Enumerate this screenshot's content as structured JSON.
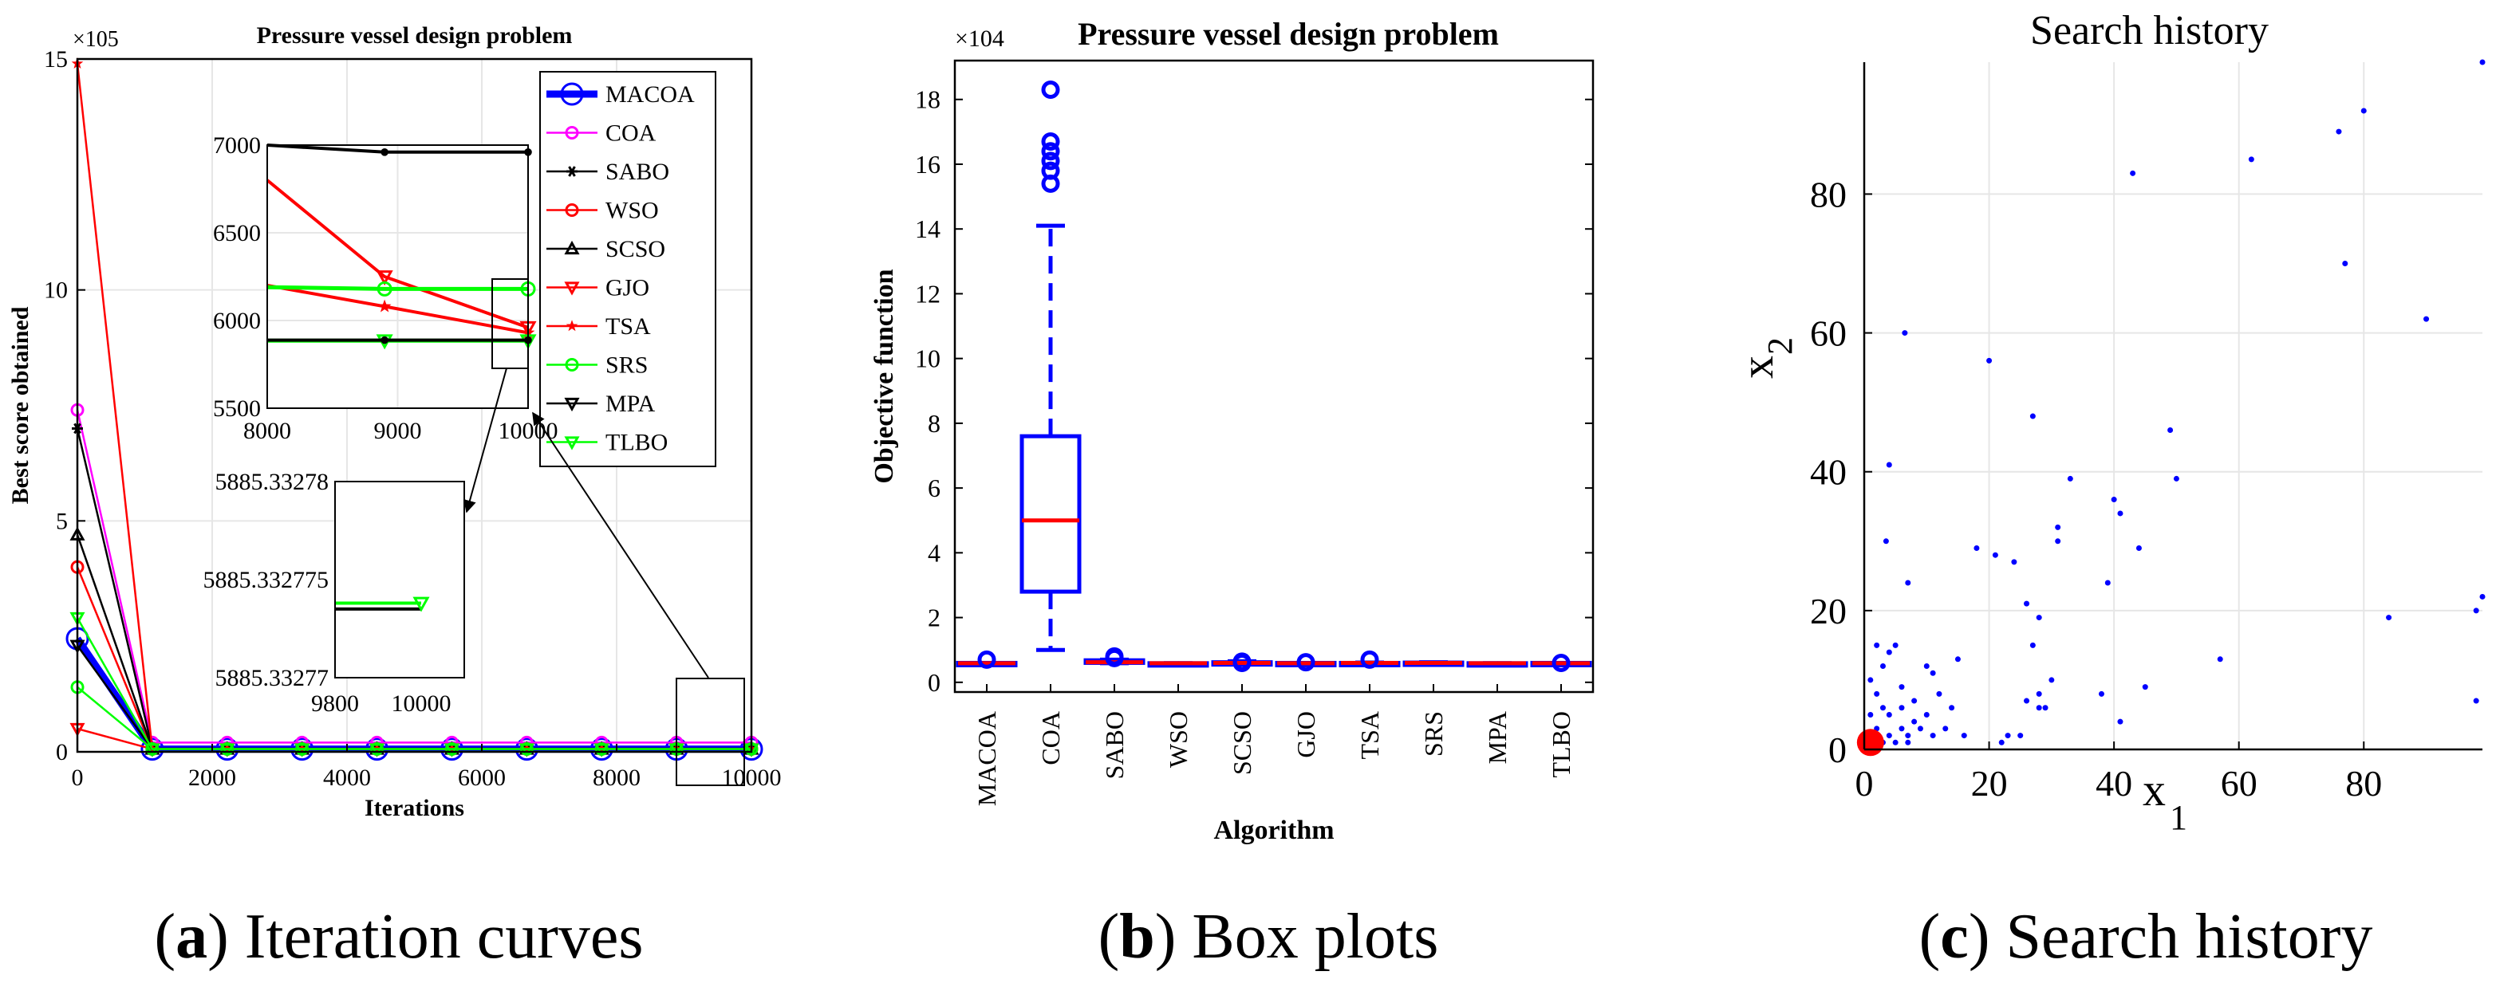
{
  "captions": [
    {
      "letter": "a",
      "text": "Iteration curves"
    },
    {
      "letter": "b",
      "text": "Box plots"
    },
    {
      "letter": "c",
      "text": "Search history"
    }
  ],
  "chart_data": [
    {
      "type": "line",
      "title": "Pressure vessel design problem",
      "xlabel": "Iterations",
      "ylabel": "Best score obtained",
      "exponent_label": "×10^5",
      "xlim": [
        0,
        10000
      ],
      "ylim": [
        0,
        15
      ],
      "xticks": [
        0,
        2000,
        4000,
        6000,
        8000,
        10000
      ],
      "yticks": [
        0,
        5,
        10,
        15
      ],
      "x": [
        0,
        1111,
        2222,
        3333,
        4444,
        5556,
        6667,
        7778,
        8889,
        10000
      ],
      "series": [
        {
          "name": "MACOA",
          "color": "#0000ff",
          "marker": "circle",
          "width": "thick",
          "values": [
            2.45,
            0.059,
            0.059,
            0.059,
            0.059,
            0.059,
            0.059,
            0.059,
            0.059,
            0.059
          ]
        },
        {
          "name": "COA",
          "color": "#ff00ff",
          "marker": "circle",
          "values": [
            7.4,
            0.2,
            0.2,
            0.2,
            0.2,
            0.2,
            0.2,
            0.2,
            0.2,
            0.2
          ]
        },
        {
          "name": "SABO",
          "color": "#000000",
          "marker": "asterisk",
          "values": [
            7.0,
            0.07,
            0.07,
            0.07,
            0.07,
            0.07,
            0.07,
            0.07,
            0.07,
            0.07
          ]
        },
        {
          "name": "WSO",
          "color": "#ff0000",
          "marker": "circle",
          "values": [
            4.0,
            0.06,
            0.06,
            0.06,
            0.06,
            0.06,
            0.06,
            0.06,
            0.06,
            0.06
          ]
        },
        {
          "name": "SCSO",
          "color": "#000000",
          "marker": "triangle-up",
          "values": [
            4.7,
            0.06,
            0.06,
            0.06,
            0.06,
            0.06,
            0.06,
            0.06,
            0.06,
            0.06
          ]
        },
        {
          "name": "GJO",
          "color": "#ff0000",
          "marker": "triangle-down",
          "values": [
            0.5,
            0.06,
            0.06,
            0.06,
            0.06,
            0.06,
            0.06,
            0.06,
            0.06,
            0.06
          ]
        },
        {
          "name": "TSA",
          "color": "#ff0000",
          "marker": "star",
          "values": [
            14.9,
            0.06,
            0.06,
            0.06,
            0.06,
            0.06,
            0.06,
            0.06,
            0.06,
            0.06
          ]
        },
        {
          "name": "SRS",
          "color": "#00ff00",
          "marker": "circle",
          "values": [
            1.4,
            0.062,
            0.062,
            0.062,
            0.062,
            0.062,
            0.062,
            0.062,
            0.062,
            0.062
          ]
        },
        {
          "name": "MPA",
          "color": "#000000",
          "marker": "triangle-down",
          "values": [
            2.3,
            0.059,
            0.059,
            0.059,
            0.059,
            0.059,
            0.059,
            0.059,
            0.059,
            0.059
          ]
        },
        {
          "name": "TLBO",
          "color": "#00ff00",
          "marker": "triangle-down",
          "values": [
            2.9,
            0.059,
            0.059,
            0.059,
            0.059,
            0.059,
            0.059,
            0.059,
            0.059,
            0.059
          ]
        }
      ],
      "legend_location": "top-right",
      "inset1": {
        "xlim": [
          8000,
          10000
        ],
        "ylim": [
          5500,
          7000
        ],
        "xticks": [
          8000,
          9000,
          10000
        ],
        "yticks": [
          5500,
          6000,
          6500,
          7000
        ],
        "lines": [
          {
            "color": "#000000",
            "marker": "dot",
            "points": [
              [
                8000,
                7000
              ],
              [
                8900,
                6960
              ],
              [
                10000,
                6960
              ]
            ]
          },
          {
            "color": "#ff0000",
            "marker": "triangle-down",
            "points": [
              [
                8000,
                6800
              ],
              [
                8900,
                6250
              ],
              [
                10000,
                5960
              ]
            ]
          },
          {
            "color": "#ff0000",
            "marker": "star",
            "points": [
              [
                8000,
                6200
              ],
              [
                8900,
                6080
              ],
              [
                10000,
                5930
              ]
            ]
          },
          {
            "color": "#00ff00",
            "marker": "circle",
            "points": [
              [
                8000,
                6190
              ],
              [
                8900,
                6180
              ],
              [
                10000,
                6180
              ]
            ]
          },
          {
            "color": "#00ff00",
            "marker": "triangle-down",
            "points": [
              [
                8000,
                5885
              ],
              [
                8900,
                5885
              ],
              [
                10000,
                5885
              ]
            ]
          },
          {
            "color": "#000000",
            "marker": "dot",
            "points": [
              [
                8000,
                5888
              ],
              [
                8900,
                5888
              ],
              [
                10000,
                5888
              ]
            ]
          }
        ]
      },
      "inset2": {
        "xlim": [
          9800,
          10100
        ],
        "ylim": [
          5885.33277,
          5885.33278
        ],
        "xticks": [
          9800,
          10000
        ],
        "yticks": [
          "5885.33277",
          "5885.332775",
          "5885.33278"
        ],
        "lines": [
          {
            "color": "#000000",
            "points": [
              [
                9800,
                5885.3327735
              ],
              [
                10000,
                5885.3327735
              ]
            ]
          },
          {
            "color": "#00ff00",
            "marker": "triangle-down",
            "points": [
              [
                9800,
                5885.3327738
              ],
              [
                10000,
                5885.3327738
              ]
            ]
          }
        ]
      }
    },
    {
      "type": "box",
      "title": "Pressure vessel design problem",
      "xlabel": "Algorithm",
      "ylabel": "Objective function",
      "exponent_label": "×10^4",
      "ylim": [
        -0.3,
        19.2
      ],
      "yticks": [
        0,
        2,
        4,
        6,
        8,
        10,
        12,
        14,
        16,
        18
      ],
      "categories": [
        "MACOA",
        "COA",
        "SABO",
        "WSO",
        "SCSO",
        "GJO",
        "TSA",
        "SRS",
        "MPA",
        "TLBO"
      ],
      "boxes": [
        {
          "q1": 0.59,
          "median": 0.59,
          "q3": 0.6,
          "low": 0.59,
          "high": 0.6,
          "outliers": [
            0.7
          ]
        },
        {
          "q1": 2.8,
          "median": 5.0,
          "q3": 7.6,
          "low": 1.0,
          "high": 14.1,
          "outliers": [
            15.4,
            15.8,
            16.1,
            16.4,
            16.7,
            18.3
          ]
        },
        {
          "q1": 0.6,
          "median": 0.62,
          "q3": 0.68,
          "low": 0.59,
          "high": 0.7,
          "outliers": [
            0.75,
            0.8
          ]
        },
        {
          "q1": 0.59,
          "median": 0.59,
          "q3": 0.59,
          "low": 0.59,
          "high": 0.59,
          "outliers": []
        },
        {
          "q1": 0.59,
          "median": 0.6,
          "q3": 0.62,
          "low": 0.59,
          "high": 0.65,
          "outliers": [
            0.6,
            0.62,
            0.64
          ]
        },
        {
          "q1": 0.59,
          "median": 0.59,
          "q3": 0.6,
          "low": 0.59,
          "high": 0.6,
          "outliers": [
            0.62
          ]
        },
        {
          "q1": 0.59,
          "median": 0.6,
          "q3": 0.6,
          "low": 0.59,
          "high": 0.61,
          "outliers": [
            0.7
          ]
        },
        {
          "q1": 0.59,
          "median": 0.6,
          "q3": 0.61,
          "low": 0.59,
          "high": 0.62,
          "outliers": []
        },
        {
          "q1": 0.59,
          "median": 0.59,
          "q3": 0.59,
          "low": 0.59,
          "high": 0.59,
          "outliers": []
        },
        {
          "q1": 0.59,
          "median": 0.59,
          "q3": 0.6,
          "low": 0.59,
          "high": 0.6,
          "outliers": [
            0.6
          ]
        }
      ]
    },
    {
      "type": "scatter",
      "title": "Search history",
      "xlabel": "x",
      "xlabel_sub": "1",
      "ylabel": "x",
      "ylabel_sub": "2",
      "xlim": [
        0,
        99
      ],
      "ylim": [
        0,
        99
      ],
      "xticks": [
        0,
        20,
        40,
        60,
        80
      ],
      "yticks": [
        0,
        20,
        40,
        60,
        80
      ],
      "grid": true,
      "best": [
        1,
        1
      ],
      "points": [
        [
          1.5,
          1
        ],
        [
          2,
          2
        ],
        [
          1,
          5
        ],
        [
          2,
          3
        ],
        [
          3,
          1
        ],
        [
          4,
          2
        ],
        [
          5,
          1
        ],
        [
          6,
          3
        ],
        [
          3,
          6
        ],
        [
          2,
          8
        ],
        [
          1,
          10
        ],
        [
          4,
          5
        ],
        [
          7,
          2
        ],
        [
          8,
          4
        ],
        [
          6,
          6
        ],
        [
          3,
          12
        ],
        [
          2,
          15
        ],
        [
          5,
          15
        ],
        [
          4,
          14
        ],
        [
          7,
          1
        ],
        [
          9,
          3
        ],
        [
          10,
          5
        ],
        [
          11,
          2
        ],
        [
          12,
          8
        ],
        [
          13,
          3
        ],
        [
          14,
          6
        ],
        [
          6,
          9
        ],
        [
          8,
          7
        ],
        [
          10,
          12
        ],
        [
          11,
          11
        ],
        [
          15,
          13
        ],
        [
          16,
          2
        ],
        [
          3.5,
          30
        ],
        [
          4,
          41
        ],
        [
          7,
          24
        ],
        [
          6.5,
          60
        ],
        [
          18,
          29
        ],
        [
          20,
          56
        ],
        [
          21,
          28
        ],
        [
          22,
          1
        ],
        [
          24,
          27
        ],
        [
          25,
          2
        ],
        [
          26,
          21
        ],
        [
          27,
          48
        ],
        [
          28,
          19
        ],
        [
          28,
          8
        ],
        [
          29,
          6
        ],
        [
          30,
          10
        ],
        [
          31,
          30
        ],
        [
          31,
          32
        ],
        [
          27,
          15
        ],
        [
          33,
          39
        ],
        [
          40,
          36
        ],
        [
          41,
          34
        ],
        [
          39,
          24
        ],
        [
          43,
          83
        ],
        [
          44,
          29
        ],
        [
          45,
          9
        ],
        [
          49,
          46
        ],
        [
          50,
          39
        ],
        [
          41,
          4
        ],
        [
          38,
          8
        ],
        [
          26,
          7
        ],
        [
          28,
          6
        ],
        [
          57,
          13
        ],
        [
          62,
          85
        ],
        [
          76,
          89
        ],
        [
          77,
          70
        ],
        [
          80,
          92
        ],
        [
          84,
          19
        ],
        [
          90,
          62
        ],
        [
          99,
          99
        ],
        [
          99,
          22
        ],
        [
          98,
          20
        ],
        [
          98,
          7
        ],
        [
          23,
          2
        ]
      ]
    }
  ]
}
